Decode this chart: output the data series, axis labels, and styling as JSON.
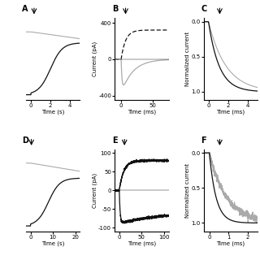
{
  "fig_width": 3.2,
  "fig_height": 3.2,
  "dpi": 100,
  "background": "#ffffff",
  "gray_color": "#aaaaaa",
  "black_color": "#111111",
  "panels_order": [
    "A",
    "B",
    "C",
    "D",
    "E",
    "F"
  ]
}
